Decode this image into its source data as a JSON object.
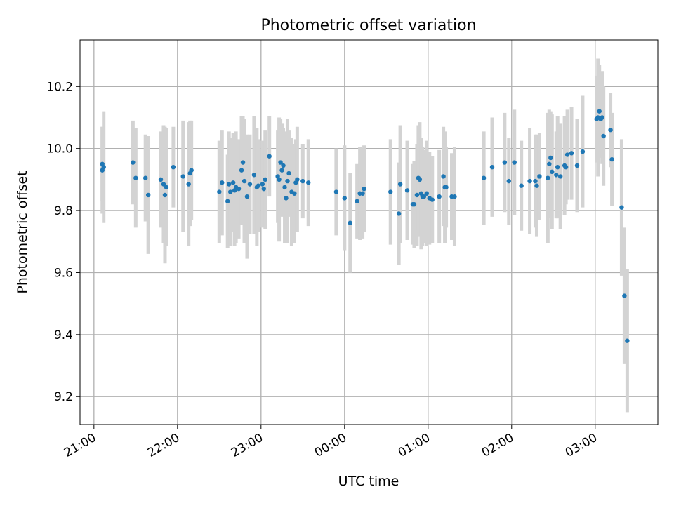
{
  "chart_data": {
    "type": "scatter",
    "title": "Photometric offset variation",
    "xlabel": "UTC time",
    "ylabel": "Photometric offset",
    "xlim": [
      "20:50",
      "03:45"
    ],
    "ylim": [
      9.11,
      10.35
    ],
    "xticks": [
      "21:00",
      "22:00",
      "23:00",
      "00:00",
      "01:00",
      "02:00",
      "03:00"
    ],
    "yticks": [
      "9.2",
      "9.4",
      "9.6",
      "9.8",
      "10.0",
      "10.2"
    ],
    "grid": true,
    "colors": {
      "point": "#1f77b4",
      "errorbar": "#d3d3d3",
      "grid": "#b0b0b0"
    },
    "points": [
      {
        "t": "21:06",
        "y": 9.93,
        "err": 0.14
      },
      {
        "t": "21:06",
        "y": 9.95,
        "err": 0.12
      },
      {
        "t": "21:07",
        "y": 9.94,
        "err": 0.18
      },
      {
        "t": "21:28",
        "y": 9.955,
        "err": 0.135
      },
      {
        "t": "21:30",
        "y": 9.905,
        "err": 0.16
      },
      {
        "t": "21:37",
        "y": 9.905,
        "err": 0.14
      },
      {
        "t": "21:39",
        "y": 9.85,
        "err": 0.19
      },
      {
        "t": "21:48",
        "y": 9.9,
        "err": 0.155
      },
      {
        "t": "21:50",
        "y": 9.885,
        "err": 0.19
      },
      {
        "t": "21:51",
        "y": 9.85,
        "err": 0.22
      },
      {
        "t": "21:52",
        "y": 9.875,
        "err": 0.19
      },
      {
        "t": "21:57",
        "y": 9.94,
        "err": 0.13
      },
      {
        "t": "22:04",
        "y": 9.91,
        "err": 0.18
      },
      {
        "t": "22:08",
        "y": 9.885,
        "err": 0.2
      },
      {
        "t": "22:09",
        "y": 9.92,
        "err": 0.17
      },
      {
        "t": "22:10",
        "y": 9.93,
        "err": 0.16
      },
      {
        "t": "22:30",
        "y": 9.86,
        "err": 0.165
      },
      {
        "t": "22:32",
        "y": 9.89,
        "err": 0.17
      },
      {
        "t": "22:36",
        "y": 9.83,
        "err": 0.15
      },
      {
        "t": "22:37",
        "y": 9.885,
        "err": 0.17
      },
      {
        "t": "22:38",
        "y": 9.86,
        "err": 0.175
      },
      {
        "t": "22:40",
        "y": 9.89,
        "err": 0.16
      },
      {
        "t": "22:41",
        "y": 9.865,
        "err": 0.18
      },
      {
        "t": "22:42",
        "y": 9.875,
        "err": 0.18
      },
      {
        "t": "22:44",
        "y": 9.87,
        "err": 0.16
      },
      {
        "t": "22:46",
        "y": 9.93,
        "err": 0.175
      },
      {
        "t": "22:47",
        "y": 9.955,
        "err": 0.15
      },
      {
        "t": "22:48",
        "y": 9.895,
        "err": 0.2
      },
      {
        "t": "22:50",
        "y": 9.845,
        "err": 0.2
      },
      {
        "t": "22:52",
        "y": 9.885,
        "err": 0.16
      },
      {
        "t": "22:55",
        "y": 9.915,
        "err": 0.19
      },
      {
        "t": "22:57",
        "y": 9.875,
        "err": 0.19
      },
      {
        "t": "22:58",
        "y": 9.88,
        "err": 0.15
      },
      {
        "t": "23:01",
        "y": 9.885,
        "err": 0.14
      },
      {
        "t": "23:02",
        "y": 9.87,
        "err": 0.12
      },
      {
        "t": "23:03",
        "y": 9.9,
        "err": 0.16
      },
      {
        "t": "23:06",
        "y": 9.975,
        "err": 0.13
      },
      {
        "t": "23:12",
        "y": 9.91,
        "err": 0.15
      },
      {
        "t": "23:13",
        "y": 9.9,
        "err": 0.2
      },
      {
        "t": "23:14",
        "y": 9.955,
        "err": 0.14
      },
      {
        "t": "23:15",
        "y": 9.93,
        "err": 0.15
      },
      {
        "t": "23:16",
        "y": 9.945,
        "err": 0.12
      },
      {
        "t": "23:17",
        "y": 9.875,
        "err": 0.18
      },
      {
        "t": "23:18",
        "y": 9.84,
        "err": 0.14
      },
      {
        "t": "23:19",
        "y": 9.895,
        "err": 0.2
      },
      {
        "t": "23:20",
        "y": 9.92,
        "err": 0.14
      },
      {
        "t": "23:22",
        "y": 9.86,
        "err": 0.175
      },
      {
        "t": "23:24",
        "y": 9.855,
        "err": 0.16
      },
      {
        "t": "23:25",
        "y": 9.89,
        "err": 0.14
      },
      {
        "t": "23:26",
        "y": 9.9,
        "err": 0.17
      },
      {
        "t": "23:30",
        "y": 9.895,
        "err": 0.12
      },
      {
        "t": "23:34",
        "y": 9.89,
        "err": 0.14
      },
      {
        "t": "23:54",
        "y": 9.86,
        "err": 0.14
      },
      {
        "t": "00:00",
        "y": 9.84,
        "err": 0.17
      },
      {
        "t": "00:04",
        "y": 9.76,
        "err": 0.16
      },
      {
        "t": "00:09",
        "y": 9.83,
        "err": 0.12
      },
      {
        "t": "00:11",
        "y": 9.855,
        "err": 0.15
      },
      {
        "t": "00:13",
        "y": 9.855,
        "err": 0.145
      },
      {
        "t": "00:14",
        "y": 9.87,
        "err": 0.14
      },
      {
        "t": "00:33",
        "y": 9.86,
        "err": 0.17
      },
      {
        "t": "00:39",
        "y": 9.79,
        "err": 0.165
      },
      {
        "t": "00:40",
        "y": 9.885,
        "err": 0.19
      },
      {
        "t": "00:45",
        "y": 9.865,
        "err": 0.16
      },
      {
        "t": "00:49",
        "y": 9.82,
        "err": 0.13
      },
      {
        "t": "00:50",
        "y": 9.82,
        "err": 0.14
      },
      {
        "t": "00:52",
        "y": 9.85,
        "err": 0.165
      },
      {
        "t": "00:53",
        "y": 9.905,
        "err": 0.17
      },
      {
        "t": "00:54",
        "y": 9.9,
        "err": 0.185
      },
      {
        "t": "00:55",
        "y": 9.855,
        "err": 0.18
      },
      {
        "t": "00:56",
        "y": 9.845,
        "err": 0.16
      },
      {
        "t": "00:57",
        "y": 9.845,
        "err": 0.15
      },
      {
        "t": "00:59",
        "y": 9.855,
        "err": 0.17
      },
      {
        "t": "01:01",
        "y": 9.84,
        "err": 0.15
      },
      {
        "t": "01:03",
        "y": 9.835,
        "err": 0.14
      },
      {
        "t": "01:08",
        "y": 9.845,
        "err": 0.15
      },
      {
        "t": "01:11",
        "y": 9.91,
        "err": 0.16
      },
      {
        "t": "01:12",
        "y": 9.875,
        "err": 0.18
      },
      {
        "t": "01:13",
        "y": 9.875,
        "err": 0.13
      },
      {
        "t": "01:17",
        "y": 9.845,
        "err": 0.14
      },
      {
        "t": "01:19",
        "y": 9.845,
        "err": 0.16
      },
      {
        "t": "01:40",
        "y": 9.905,
        "err": 0.15
      },
      {
        "t": "01:46",
        "y": 9.94,
        "err": 0.16
      },
      {
        "t": "01:55",
        "y": 9.955,
        "err": 0.16
      },
      {
        "t": "01:58",
        "y": 9.895,
        "err": 0.14
      },
      {
        "t": "02:02",
        "y": 9.955,
        "err": 0.17
      },
      {
        "t": "02:07",
        "y": 9.88,
        "err": 0.145
      },
      {
        "t": "02:13",
        "y": 9.895,
        "err": 0.17
      },
      {
        "t": "02:17",
        "y": 9.895,
        "err": 0.15
      },
      {
        "t": "02:18",
        "y": 9.88,
        "err": 0.165
      },
      {
        "t": "02:20",
        "y": 9.91,
        "err": 0.14
      },
      {
        "t": "02:26",
        "y": 9.905,
        "err": 0.21
      },
      {
        "t": "02:27",
        "y": 9.95,
        "err": 0.175
      },
      {
        "t": "02:28",
        "y": 9.97,
        "err": 0.15
      },
      {
        "t": "02:29",
        "y": 9.925,
        "err": 0.185
      },
      {
        "t": "02:32",
        "y": 9.915,
        "err": 0.14
      },
      {
        "t": "02:33",
        "y": 9.94,
        "err": 0.165
      },
      {
        "t": "02:35",
        "y": 9.91,
        "err": 0.17
      },
      {
        "t": "02:38",
        "y": 9.945,
        "err": 0.16
      },
      {
        "t": "02:39",
        "y": 9.94,
        "err": 0.12
      },
      {
        "t": "02:40",
        "y": 9.98,
        "err": 0.145
      },
      {
        "t": "02:43",
        "y": 9.985,
        "err": 0.15
      },
      {
        "t": "02:47",
        "y": 9.945,
        "err": 0.15
      },
      {
        "t": "02:51",
        "y": 9.99,
        "err": 0.18
      },
      {
        "t": "03:01",
        "y": 10.095,
        "err": 0.14
      },
      {
        "t": "03:02",
        "y": 10.1,
        "err": 0.19
      },
      {
        "t": "03:03",
        "y": 10.12,
        "err": 0.15
      },
      {
        "t": "03:04",
        "y": 10.095,
        "err": 0.12
      },
      {
        "t": "03:05",
        "y": 10.1,
        "err": 0.15
      },
      {
        "t": "03:06",
        "y": 10.04,
        "err": 0.16
      },
      {
        "t": "03:11",
        "y": 10.06,
        "err": 0.12
      },
      {
        "t": "03:12",
        "y": 9.965,
        "err": 0.15
      },
      {
        "t": "03:19",
        "y": 9.81,
        "err": 0.22
      },
      {
        "t": "03:21",
        "y": 9.525,
        "err": 0.22
      },
      {
        "t": "03:23",
        "y": 9.38,
        "err": 0.23
      }
    ]
  }
}
